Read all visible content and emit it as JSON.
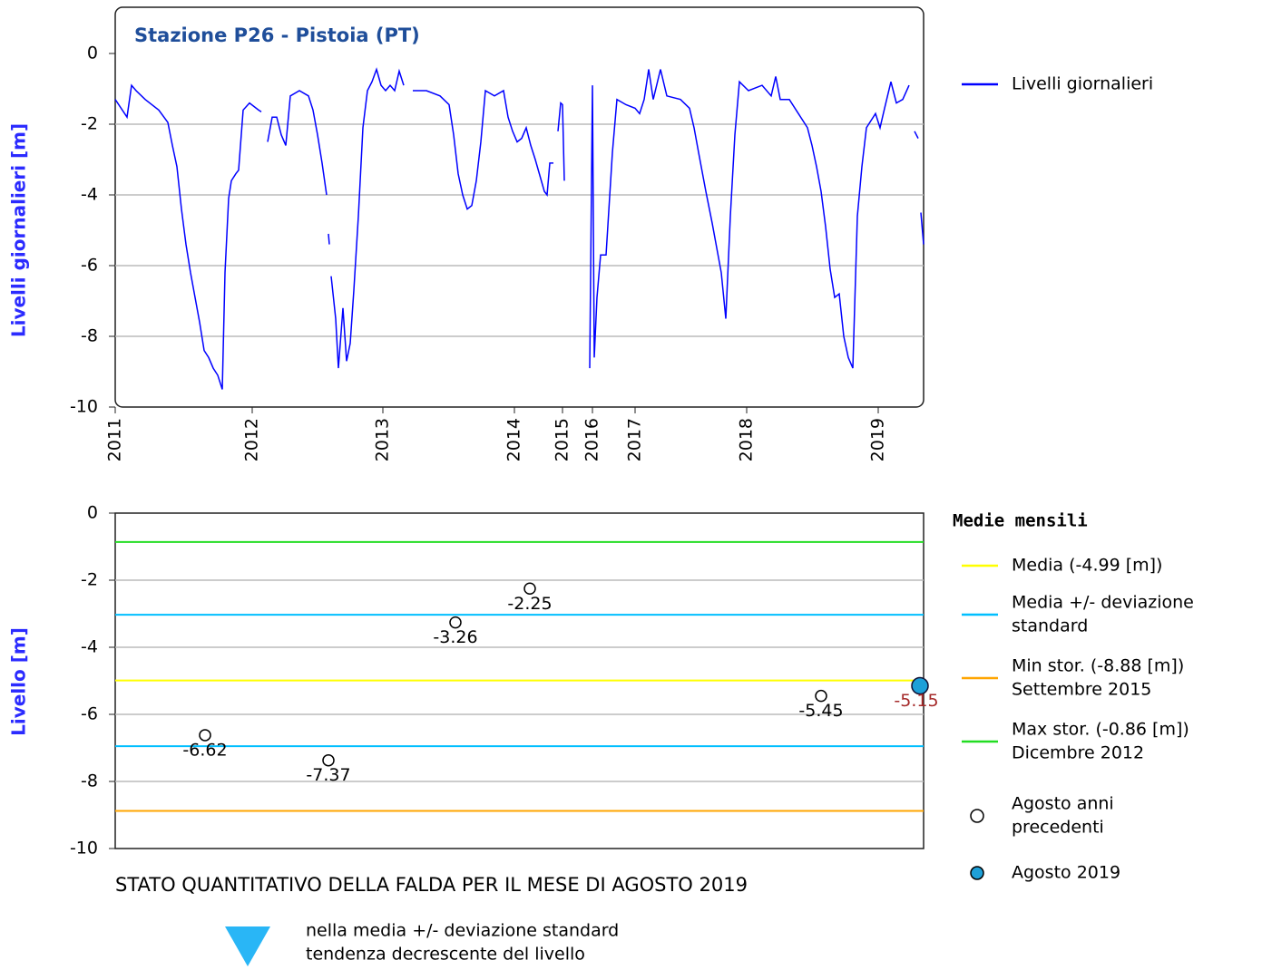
{
  "chart_data": [
    {
      "type": "line",
      "title": "Stazione P26 - Pistoia (PT)",
      "ylabel": "Livelli giornalieri [m]",
      "x": [
        0,
        13,
        18,
        23,
        33,
        48,
        58,
        63,
        68,
        73,
        78,
        83,
        88,
        93,
        98,
        103,
        108,
        113,
        118,
        121,
        125,
        128,
        133,
        136,
        141,
        148,
        158,
        161,
        163,
        168,
        173,
        178,
        183,
        188,
        193,
        203,
        213,
        218,
        223,
        228,
        233,
        234,
        235,
        236,
        237,
        238,
        243,
        246,
        251,
        255,
        259,
        263,
        268,
        273,
        278,
        283,
        288,
        293,
        298,
        303,
        308,
        313,
        318,
        323,
        328,
        343,
        358,
        368,
        373,
        378,
        383,
        388,
        393,
        398,
        403,
        408,
        418,
        428,
        433,
        438,
        443,
        448,
        453,
        458,
        463,
        473,
        476,
        479,
        483,
        485,
        488,
        491,
        493,
        495,
        508,
        523,
        526,
        528,
        531,
        535,
        541,
        548,
        553,
        563,
        573,
        578,
        583,
        588,
        593,
        601,
        608,
        623,
        633,
        638,
        643,
        651,
        658,
        663,
        668,
        673,
        678,
        683,
        688,
        698,
        713,
        723,
        728,
        733,
        743,
        753,
        763,
        768,
        773,
        778,
        783,
        788,
        793,
        798,
        803,
        808,
        813,
        818,
        823,
        828,
        838,
        843,
        848,
        855,
        861,
        868,
        875,
        878,
        881,
        885,
        886,
        888,
        891
      ],
      "series": [
        {
          "name": "Livelli giornalieri",
          "color": "#0000ff",
          "values": [
            -1.3,
            -1.8,
            -0.9,
            -1.05,
            -1.3,
            -1.6,
            -1.95,
            -2.6,
            -3.2,
            -4.4,
            -5.4,
            -6.2,
            -6.9,
            -7.6,
            -8.4,
            -8.6,
            -8.9,
            -9.1,
            -9.5,
            -6.2,
            -4.1,
            -3.6,
            -3.4,
            -3.3,
            -1.6,
            -1.4,
            -1.6,
            -1.65,
            null,
            -2.5,
            -1.8,
            -1.8,
            -2.3,
            -2.6,
            -1.2,
            -1.05,
            -1.2,
            -1.6,
            -2.3,
            -3.1,
            -4.0,
            null,
            -5.1,
            -5.4,
            null,
            -6.3,
            -7.5,
            -8.9,
            -7.2,
            -8.7,
            -8.2,
            -6.7,
            -4.6,
            -2.1,
            -1.05,
            -0.8,
            -0.45,
            -0.9,
            -1.05,
            -0.9,
            -1.05,
            -0.5,
            -0.9,
            null,
            -1.05,
            -1.05,
            -1.2,
            -1.45,
            -2.3,
            -3.4,
            -4.0,
            -4.4,
            -4.3,
            -3.6,
            -2.5,
            -1.05,
            -1.2,
            -1.05,
            -1.8,
            -2.2,
            -2.5,
            -2.4,
            -2.1,
            -2.6,
            -3.0,
            -3.9,
            -4.0,
            -3.1,
            -3.1,
            null,
            -2.2,
            -1.4,
            -1.45,
            -3.6,
            null,
            -8.9,
            -0.9,
            -8.6,
            -6.9,
            -5.7,
            -5.7,
            -2.8,
            -1.3,
            -1.45,
            -1.55,
            -1.7,
            -1.3,
            -0.45,
            -1.3,
            -0.45,
            -1.2,
            -1.3,
            -1.55,
            -2.1,
            -2.8,
            -3.9,
            -4.8,
            -5.5,
            -6.2,
            -7.5,
            -4.6,
            -2.3,
            -0.8,
            -1.05,
            -0.9,
            -1.2,
            -0.65,
            -1.3,
            -1.3,
            -1.7,
            -2.1,
            -2.6,
            -3.2,
            -3.9,
            -4.9,
            -6.1,
            -6.9,
            -6.8,
            -8.0,
            -8.6,
            -8.9,
            -4.6,
            -3.2,
            -2.1,
            -1.7,
            -2.1,
            -1.55,
            -0.8,
            -1.4,
            -1.3,
            -0.9,
            null,
            -2.2,
            -2.4,
            null,
            -4.5,
            -5.4
          ]
        }
      ],
      "xlim": [
        0,
        891
      ],
      "xticks": [
        {
          "value": 0,
          "label": "2011"
        },
        {
          "value": 151,
          "label": "2012"
        },
        {
          "value": 295,
          "label": "2013"
        },
        {
          "value": 440,
          "label": "2014"
        },
        {
          "value": 493,
          "label": "2015"
        },
        {
          "value": 526,
          "label": "2016"
        },
        {
          "value": 573,
          "label": "2017"
        },
        {
          "value": 696,
          "label": "2018"
        },
        {
          "value": 841,
          "label": "2019"
        }
      ],
      "ylim": [
        -10,
        0
      ],
      "yticks": [
        -10,
        -8,
        -6,
        -4,
        -2,
        0
      ],
      "grid": true
    },
    {
      "type": "scatter",
      "ylabel": "Livello [m]",
      "legend_title": "Medie mensili",
      "reference_lines": [
        {
          "name": [
            "Media (-4.99 [m])"
          ],
          "color": "#ffff00",
          "values": [
            -4.99
          ]
        },
        {
          "name": [
            "Media +/- deviazione",
            "standard"
          ],
          "color": "#00bfff",
          "values": [
            -3.03,
            -6.95
          ]
        },
        {
          "name": [
            "Min stor. (-8.88 [m])",
            "Settembre 2015"
          ],
          "color": "#ffa500",
          "values": [
            -8.88
          ]
        },
        {
          "name": [
            "Max stor. (-0.86 [m])",
            "Dicembre 2012"
          ],
          "color": "#22dd22",
          "values": [
            -0.86
          ]
        }
      ],
      "series": [
        {
          "name": [
            "Agosto anni",
            "precedenti"
          ],
          "color": "#ffffff",
          "label_color": "#000000",
          "x": [
            99,
            235,
            375,
            457,
            778
          ],
          "values": [
            -6.62,
            -7.37,
            -3.26,
            -2.25,
            -5.45
          ]
        },
        {
          "name": [
            "Agosto 2019"
          ],
          "color": "#1ea0d8",
          "label_color": "#a52a2a",
          "x": [
            887
          ],
          "values": [
            -5.15
          ]
        }
      ],
      "xlim": [
        0,
        891
      ],
      "ylim": [
        -10,
        0
      ],
      "yticks": [
        -10,
        -8,
        -6,
        -4,
        -2,
        0
      ],
      "grid": true
    }
  ],
  "footer": {
    "title": "STATO QUANTITATIVO DELLA FALDA PER IL MESE DI AGOSTO 2019",
    "lines": [
      "nella media +/- deviazione standard",
      "tendenza decrescente del livello"
    ]
  }
}
